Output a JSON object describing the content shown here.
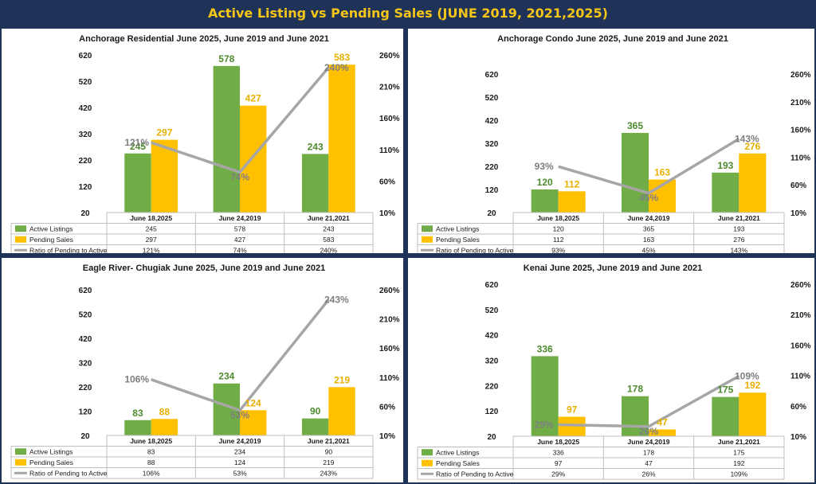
{
  "page_title": "Active Listing vs Pending Sales (JUNE 2019, 2021,2025)",
  "colors": {
    "active": "#70ad47",
    "pending": "#ffc000",
    "ratio": "#a6a6a6",
    "active_label": "#4e8a2e",
    "pending_label": "#e8b000",
    "ratio_label": "#7f7f7f",
    "banner_bg": "#1f3358",
    "banner_text": "#f5c518"
  },
  "chart_data": [
    {
      "type": "bar",
      "title": "Anchorage  Residential June 2025, June 2019 and June 2021",
      "categories": [
        "June 18,2025",
        "June 24,2019",
        "June 21,2021"
      ],
      "series": [
        {
          "name": "Active Listings",
          "values": [
            245,
            578,
            243
          ],
          "value_labels": [
            "245",
            "578",
            "243"
          ]
        },
        {
          "name": "Pending Sales",
          "values": [
            297,
            427,
            583
          ],
          "value_labels": [
            "297",
            "427",
            "583"
          ]
        },
        {
          "name": "Ratio of Pending to Active",
          "type": "line",
          "axis": "secondary",
          "values": [
            121,
            74,
            240
          ],
          "value_labels": [
            "121%",
            "74%",
            "240%"
          ]
        }
      ],
      "y_ticks": [
        "620",
        "520",
        "420",
        "320",
        "220",
        "120",
        "20"
      ],
      "y2_ticks": [
        "260%",
        "210%",
        "160%",
        "110%",
        "60%",
        "10%"
      ],
      "ylim": [
        20,
        620
      ],
      "y2lim": [
        10,
        260
      ],
      "legend": "data-table"
    },
    {
      "type": "bar",
      "title": "Anchorage Condo June 2025, June 2019 and June 2021",
      "categories": [
        "June 18,2025",
        "June 24,2019",
        "June 21,2021"
      ],
      "series": [
        {
          "name": "Active Listings",
          "values": [
            120,
            365,
            193
          ],
          "value_labels": [
            "120",
            "365",
            "193"
          ]
        },
        {
          "name": "Pending Sales",
          "values": [
            112,
            163,
            276
          ],
          "value_labels": [
            "112",
            "163",
            "276"
          ]
        },
        {
          "name": "Ratio of Pending to Active",
          "type": "line",
          "axis": "secondary",
          "values": [
            93,
            45,
            143
          ],
          "value_labels": [
            "93%",
            "45%",
            "143%"
          ]
        }
      ],
      "y_ticks": [
        "620",
        "520",
        "420",
        "320",
        "220",
        "120",
        "20"
      ],
      "y2_ticks": [
        "260%",
        "210%",
        "160%",
        "110%",
        "60%",
        "10%"
      ],
      "ylim": [
        20,
        620
      ],
      "y2lim": [
        10,
        260
      ],
      "legend": "data-table"
    },
    {
      "type": "bar",
      "title": "Eagle River- Chugiak June 2025, June 2019 and June 2021",
      "categories": [
        "June 18,2025",
        "June 24,2019",
        "June 21,2021"
      ],
      "series": [
        {
          "name": "Active Listings",
          "values": [
            83,
            234,
            90
          ],
          "value_labels": [
            "83",
            "234",
            "90"
          ]
        },
        {
          "name": "Pending Sales",
          "values": [
            88,
            124,
            219
          ],
          "value_labels": [
            "88",
            "124",
            "219"
          ]
        },
        {
          "name": "Ratio of Pending to Active",
          "type": "line",
          "axis": "secondary",
          "values": [
            106,
            53,
            243
          ],
          "value_labels": [
            "106%",
            "53%",
            "243%"
          ]
        }
      ],
      "y_ticks": [
        "620",
        "520",
        "420",
        "320",
        "220",
        "120",
        "20"
      ],
      "y2_ticks": [
        "260%",
        "210%",
        "160%",
        "110%",
        "60%",
        "10%"
      ],
      "ylim": [
        20,
        620
      ],
      "y2lim": [
        10,
        260
      ],
      "legend": "data-table"
    },
    {
      "type": "bar",
      "title": "Kenai June 2025, June 2019 and June 2021",
      "categories": [
        "June 18,2025",
        "June 24,2019",
        "June 21,2021"
      ],
      "series": [
        {
          "name": "Active Listings",
          "values": [
            336,
            178,
            175
          ],
          "value_labels": [
            "336",
            "178",
            "175"
          ]
        },
        {
          "name": "Pending Sales",
          "values": [
            97,
            47,
            192
          ],
          "value_labels": [
            "97",
            "47",
            "192"
          ]
        },
        {
          "name": "Ratio of Pending to Active",
          "type": "line",
          "axis": "secondary",
          "values": [
            29,
            26,
            109
          ],
          "value_labels": [
            "29%",
            "26%",
            "109%"
          ]
        }
      ],
      "y_ticks": [
        "620",
        "520",
        "420",
        "320",
        "220",
        "120",
        "20"
      ],
      "y2_ticks": [
        "260%",
        "210%",
        "160%",
        "110%",
        "60%",
        "10%"
      ],
      "ylim": [
        20,
        620
      ],
      "y2lim": [
        10,
        260
      ],
      "legend": "data-table"
    }
  ]
}
